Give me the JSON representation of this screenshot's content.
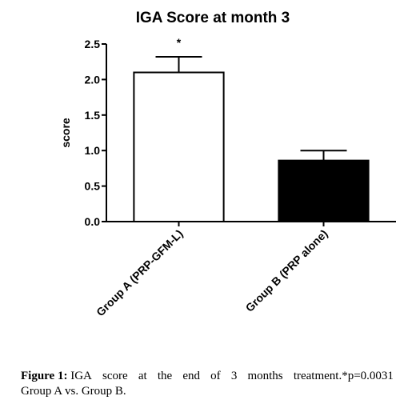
{
  "chart_data": {
    "type": "bar",
    "title": "IGA Score at month 3",
    "xlabel": "",
    "ylabel": "score",
    "ylim": [
      0,
      2.5
    ],
    "yticks": [
      0.0,
      0.5,
      1.0,
      1.5,
      2.0,
      2.5
    ],
    "ytick_labels": [
      "0.0",
      "0.5",
      "1.0",
      "1.5",
      "2.0",
      "2.5"
    ],
    "categories": [
      "Group A (PRP-GFM-L)",
      "Group B (PRP alone)"
    ],
    "values": [
      2.1,
      0.86
    ],
    "error_upper": [
      2.32,
      1.0
    ],
    "bar_fills": [
      "#ffffff",
      "#000000"
    ],
    "annotations": [
      {
        "category": "Group A (PRP-GFM-L)",
        "text": "*"
      }
    ],
    "grid": false,
    "legend": "none"
  },
  "caption": {
    "label": "Figure 1:",
    "line1_words": [
      "IGA",
      "score",
      "at",
      "the",
      "end",
      "of",
      "3",
      "months",
      "treatment.*p=0.0031"
    ],
    "line2": "Group A vs. Group B."
  }
}
